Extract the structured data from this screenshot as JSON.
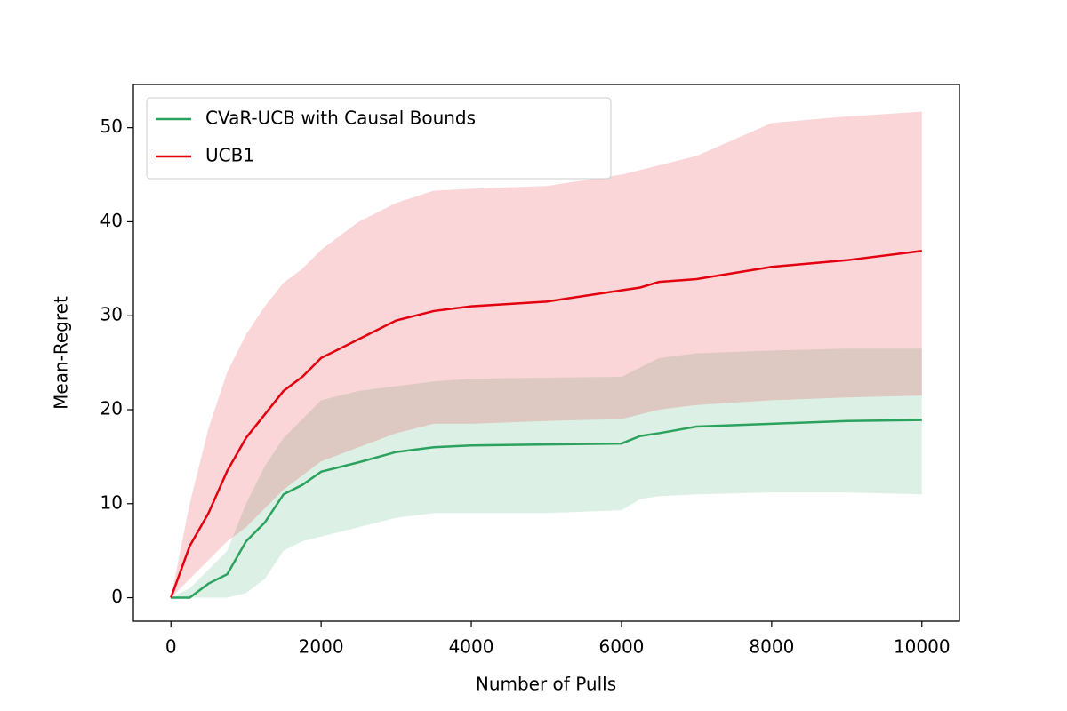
{
  "chart_data": {
    "type": "line",
    "xlabel": "Number of Pulls",
    "ylabel": "Mean-Regret",
    "x": [
      0,
      250,
      500,
      750,
      1000,
      1250,
      1500,
      1750,
      2000,
      2500,
      3000,
      3500,
      4000,
      5000,
      6000,
      6250,
      6500,
      7000,
      8000,
      9000,
      10000
    ],
    "series": [
      {
        "name": "CVaR-UCB with Causal Bounds",
        "color": "#2ca25f",
        "values": [
          0,
          0,
          1.5,
          2.5,
          6,
          8,
          11,
          12,
          13.4,
          14.4,
          15.5,
          16,
          16.2,
          16.3,
          16.4,
          17.2,
          17.5,
          18.2,
          18.5,
          18.8,
          18.9
        ],
        "lower": [
          0,
          0,
          0,
          0,
          0.5,
          2,
          5,
          6,
          6.5,
          7.5,
          8.5,
          9,
          9,
          9,
          9.3,
          10.5,
          10.8,
          11,
          11.2,
          11.2,
          11
        ],
        "upper": [
          0,
          1,
          3,
          5,
          10,
          14,
          17,
          19,
          21,
          22,
          22.5,
          23,
          23.3,
          23.4,
          23.5,
          24.5,
          25.5,
          26,
          26.3,
          26.5,
          26.5
        ]
      },
      {
        "name": "UCB1",
        "color": "#e3000f",
        "values": [
          0,
          5.5,
          9,
          13.5,
          17,
          19.5,
          22,
          23.5,
          25.5,
          27.5,
          29.5,
          30.5,
          31,
          31.5,
          32.7,
          33,
          33.6,
          33.9,
          35.2,
          35.9,
          36.9
        ],
        "lower": [
          0,
          2,
          4,
          6,
          7.5,
          9.5,
          11.5,
          13,
          14.5,
          16,
          17.5,
          18.5,
          18.5,
          18.8,
          19,
          19.5,
          20,
          20.5,
          21,
          21.3,
          21.5
        ],
        "upper": [
          0,
          10,
          18,
          24,
          28,
          31,
          33.5,
          35,
          37,
          40,
          42,
          43.3,
          43.5,
          43.8,
          45,
          45.5,
          46,
          47,
          50.5,
          51.2,
          51.7
        ]
      }
    ],
    "xlim": [
      -500,
      10500
    ],
    "ylim": [
      -2.5,
      54.6
    ],
    "xticks": [
      0,
      2000,
      4000,
      6000,
      8000,
      10000
    ],
    "yticks": [
      0,
      10,
      20,
      30,
      40,
      50
    ],
    "legend": "upper left"
  }
}
